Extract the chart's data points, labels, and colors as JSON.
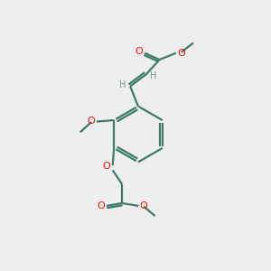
{
  "bg_color": "#eeeeee",
  "bond_color": "#3d7a6a",
  "oxygen_color": "#ee1100",
  "h_color": "#6a9a8a",
  "line_width": 1.6,
  "fig_size": [
    3.0,
    3.0
  ],
  "dpi": 100,
  "xlim": [
    0,
    10
  ],
  "ylim": [
    0,
    10
  ]
}
